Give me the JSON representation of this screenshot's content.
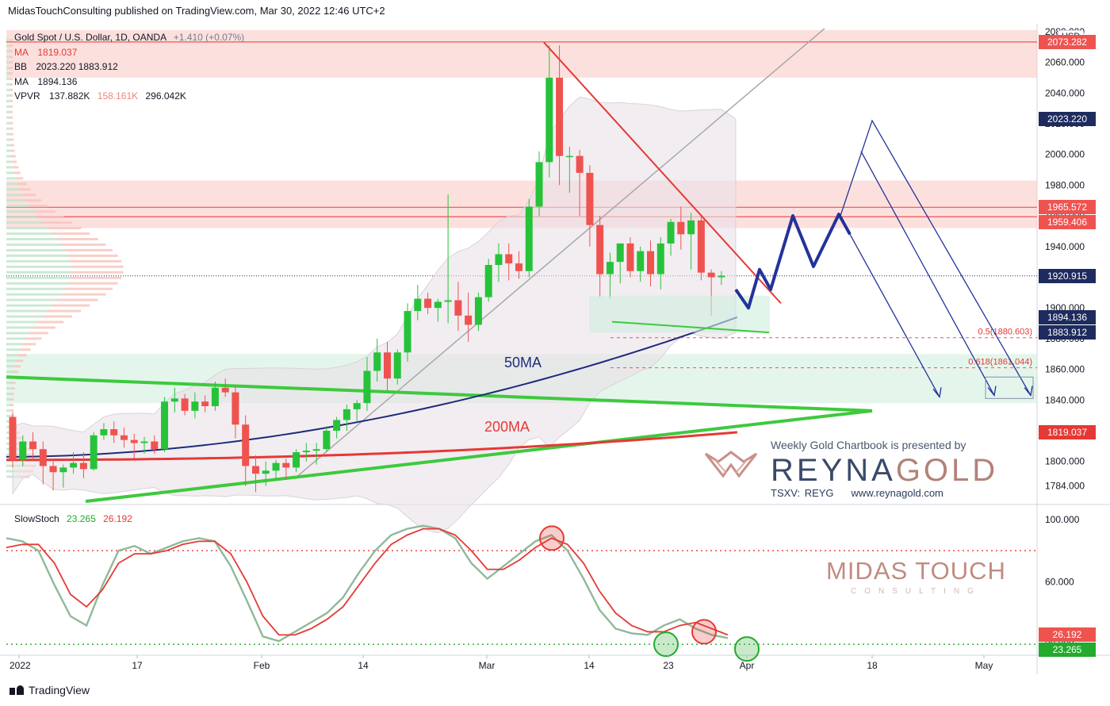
{
  "header": {
    "published": "MidasTouchConsulting published on TradingView.com, Mar 30, 2022 12:46 UTC+2"
  },
  "footer": {
    "brand": "TradingView"
  },
  "legend": {
    "symbol": "Gold Spot / U.S. Dollar, 1D, OANDA",
    "change": "+1.410 (+0.07%)",
    "ma1_label": "MA",
    "ma1_value": "1819.037",
    "bb_label": "BB",
    "bb_value": "2023.220  1883.912",
    "ma2_label": "MA",
    "ma2_value": "1894.136",
    "vpvr_label": "VPVR",
    "vpvr_v1": "137.882K",
    "vpvr_v2": "158.161K",
    "vpvr_v3": "296.042K"
  },
  "stoch_legend": {
    "label": "SlowStoch",
    "k": "23.265",
    "d": "26.192"
  },
  "currency": "USD",
  "annotations": {
    "ma50": "50MA",
    "ma200": "200MA"
  },
  "promo": {
    "text": "Weekly Gold Chartbook is presented by",
    "brand_a": "REYNA",
    "brand_b": "GOLD",
    "ticker": "TSXV: REYG",
    "url": "www.reynagold.com"
  },
  "midas": {
    "title": "MIDAS TOUCH",
    "sub": "CONSULTING"
  },
  "price_labels": [
    {
      "text": "2073.282",
      "value": 2073.282,
      "color": "#ef5350"
    },
    {
      "text": "2023.220",
      "value": 2023.22,
      "color": "#1e2b5e"
    },
    {
      "text": "1965.572",
      "value": 1965.572,
      "color": "#ef5350"
    },
    {
      "text": "1959.406",
      "value": 1959.406,
      "color": "#ef5350"
    },
    {
      "text": "1920.915",
      "value": 1920.915,
      "color": "#1e2b5e"
    },
    {
      "text": "1894.136",
      "value": 1894.136,
      "color": "#1e2b5e"
    },
    {
      "text": "1883.912",
      "value": 1883.912,
      "color": "#1e2b5e"
    },
    {
      "text": "1819.037",
      "value": 1819.037,
      "color": "#e53935"
    }
  ],
  "stoch_labels": [
    {
      "text": "26.192",
      "value": 26.192,
      "color": "#ef5350"
    },
    {
      "text": "23.265",
      "value": 23.265,
      "color": "#22ab2c"
    }
  ],
  "fib_labels": [
    {
      "text": "0.5(1880.603)",
      "value": 1880.603
    },
    {
      "text": "0.618(1861.044)",
      "value": 1861.044
    }
  ],
  "colors": {
    "up": "#26c33a",
    "down": "#ef5350",
    "ma50": "#1e2b7a",
    "ma200": "#e53935",
    "trend": "#3ec93e",
    "fore": "#23329a"
  },
  "chart_data": {
    "type": "candlestick",
    "title": "Gold Spot / U.S. Dollar, 1D, OANDA",
    "y_axis": {
      "ticks": [
        1784,
        1800,
        1840,
        1860,
        1880,
        1900,
        1920,
        1940,
        1960,
        1980,
        2000,
        2020,
        2040,
        2060,
        2080
      ],
      "range": [
        1774,
        2082
      ]
    },
    "x_axis": {
      "ticks": [
        "2022",
        "17",
        "Feb",
        "14",
        "Mar",
        "14",
        "23",
        "Apr",
        "18",
        "May"
      ]
    },
    "stoch_axis": {
      "ticks": [
        20,
        60,
        100
      ],
      "range": [
        15,
        105
      ]
    },
    "series": [
      {
        "name": "XAUUSD",
        "ohlc_note": "open, high, low, close (USD)",
        "ohlc": [
          [
            1829,
            1832,
            1796,
            1801
          ],
          [
            1801,
            1817,
            1797,
            1813
          ],
          [
            1813,
            1819,
            1801,
            1808
          ],
          [
            1808,
            1813,
            1785,
            1797
          ],
          [
            1797,
            1801,
            1781,
            1793
          ],
          [
            1793,
            1798,
            1783,
            1796
          ],
          [
            1796,
            1806,
            1792,
            1799
          ],
          [
            1799,
            1806,
            1789,
            1795
          ],
          [
            1795,
            1819,
            1794,
            1817
          ],
          [
            1817,
            1825,
            1814,
            1821
          ],
          [
            1821,
            1826,
            1812,
            1817
          ],
          [
            1817,
            1822,
            1809,
            1814
          ],
          [
            1814,
            1818,
            1802,
            1812
          ],
          [
            1812,
            1816,
            1805,
            1813
          ],
          [
            1813,
            1817,
            1805,
            1808
          ],
          [
            1808,
            1842,
            1806,
            1839
          ],
          [
            1839,
            1848,
            1832,
            1841
          ],
          [
            1841,
            1844,
            1830,
            1833
          ],
          [
            1833,
            1845,
            1828,
            1839
          ],
          [
            1839,
            1843,
            1832,
            1836
          ],
          [
            1836,
            1852,
            1833,
            1848
          ],
          [
            1848,
            1854,
            1842,
            1845
          ],
          [
            1845,
            1849,
            1815,
            1824
          ],
          [
            1824,
            1830,
            1784,
            1797
          ],
          [
            1797,
            1804,
            1780,
            1792
          ],
          [
            1792,
            1800,
            1784,
            1794
          ],
          [
            1794,
            1801,
            1788,
            1799
          ],
          [
            1799,
            1802,
            1788,
            1796
          ],
          [
            1796,
            1808,
            1793,
            1806
          ],
          [
            1806,
            1812,
            1800,
            1807
          ],
          [
            1807,
            1812,
            1798,
            1808
          ],
          [
            1808,
            1823,
            1806,
            1820
          ],
          [
            1820,
            1829,
            1815,
            1827
          ],
          [
            1827,
            1837,
            1820,
            1834
          ],
          [
            1834,
            1840,
            1826,
            1838
          ],
          [
            1838,
            1868,
            1833,
            1859
          ],
          [
            1859,
            1880,
            1852,
            1871
          ],
          [
            1871,
            1878,
            1846,
            1854
          ],
          [
            1854,
            1873,
            1850,
            1871
          ],
          [
            1871,
            1903,
            1865,
            1898
          ],
          [
            1898,
            1915,
            1892,
            1906
          ],
          [
            1906,
            1910,
            1896,
            1900
          ],
          [
            1900,
            1906,
            1891,
            1904
          ],
          [
            1904,
            1974,
            1890,
            1905
          ],
          [
            1905,
            1917,
            1885,
            1895
          ],
          [
            1895,
            1910,
            1878,
            1889
          ],
          [
            1889,
            1910,
            1885,
            1907
          ],
          [
            1907,
            1932,
            1904,
            1928
          ],
          [
            1928,
            1942,
            1917,
            1935
          ],
          [
            1935,
            1942,
            1918,
            1929
          ],
          [
            1929,
            1937,
            1919,
            1924
          ],
          [
            1924,
            1971,
            1920,
            1966
          ],
          [
            1966,
            2002,
            1960,
            1995
          ],
          [
            1995,
            2071,
            1985,
            2050
          ],
          [
            2050,
            2071,
            1980,
            1999
          ],
          [
            1999,
            2005,
            1975,
            1999
          ],
          [
            1999,
            2003,
            1960,
            1988
          ],
          [
            1988,
            1993,
            1940,
            1954
          ],
          [
            1954,
            1960,
            1907,
            1922
          ],
          [
            1922,
            1936,
            1906,
            1930
          ],
          [
            1930,
            1942,
            1916,
            1942
          ],
          [
            1942,
            1946,
            1920,
            1924
          ],
          [
            1924,
            1940,
            1917,
            1937
          ],
          [
            1937,
            1944,
            1914,
            1922
          ],
          [
            1922,
            1946,
            1912,
            1942
          ],
          [
            1942,
            1958,
            1934,
            1956
          ],
          [
            1956,
            1966,
            1938,
            1948
          ],
          [
            1948,
            1962,
            1925,
            1957
          ],
          [
            1957,
            1960,
            1918,
            1923
          ],
          [
            1923,
            1925,
            1895,
            1920
          ],
          [
            1920,
            1924,
            1915,
            1921
          ]
        ]
      },
      {
        "name": "MA 1819.037",
        "role": "200-day MA",
        "from_to": [
          1801,
          1819
        ]
      },
      {
        "name": "MA 1894.136",
        "role": "50-day MA",
        "from_to": [
          1803,
          1894
        ]
      },
      {
        "name": "BB",
        "upper_last": 2023.22,
        "lower_last": 1883.912
      }
    ],
    "levels": {
      "resistance_zones": [
        [
          2050,
          2081
        ],
        [
          1952,
          1983
        ]
      ],
      "support_zones": [
        [
          1838,
          1870
        ]
      ],
      "fib": [
        {
          "label": "0.5",
          "value": 1880.603
        },
        {
          "label": "0.618",
          "value": 1861.044
        }
      ]
    },
    "stoch": {
      "k_last": 23.265,
      "d_last": 26.192,
      "k": [
        88,
        86,
        80,
        58,
        38,
        32,
        58,
        80,
        83,
        78,
        82,
        86,
        88,
        86,
        70,
        48,
        25,
        22,
        28,
        34,
        40,
        50,
        66,
        80,
        90,
        94,
        96,
        94,
        88,
        72,
        62,
        70,
        78,
        86,
        90,
        80,
        62,
        42,
        30,
        27,
        26,
        32,
        36,
        30,
        26,
        24
      ],
      "d": [
        82,
        84,
        84,
        72,
        52,
        44,
        55,
        72,
        78,
        78,
        80,
        84,
        86,
        86,
        78,
        60,
        38,
        26,
        26,
        30,
        36,
        44,
        58,
        72,
        84,
        90,
        94,
        94,
        90,
        80,
        68,
        68,
        74,
        82,
        88,
        84,
        72,
        54,
        40,
        32,
        28,
        28,
        32,
        34,
        30,
        26
      ]
    }
  }
}
